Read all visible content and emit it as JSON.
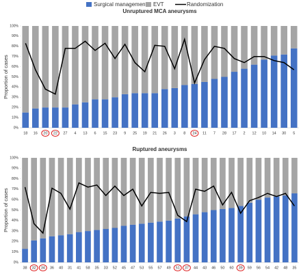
{
  "chart_data": [
    {
      "type": "stacked-bar-line",
      "title": "Unruptured MCA aneurysms",
      "y_label": "Proportion of cases",
      "categories": [
        "18",
        "16",
        "20",
        "22",
        "27",
        "4",
        "13",
        "6",
        "15",
        "23",
        "9",
        "25",
        "19",
        "21",
        "26",
        "3",
        "8",
        "24",
        "11",
        "7",
        "28",
        "17",
        "2",
        "12",
        "10",
        "14",
        "30",
        "5"
      ],
      "circled": [
        2,
        3,
        17
      ],
      "series": [
        {
          "name": "Surgical management",
          "color": "#4472c4",
          "kind": "bar",
          "values": [
            15,
            19,
            20,
            20,
            20,
            23,
            25,
            28,
            28,
            30,
            33,
            34,
            34,
            34,
            38,
            39,
            42,
            43,
            45,
            48,
            50,
            55,
            58,
            62,
            67,
            71,
            72,
            78
          ]
        },
        {
          "name": "EVT",
          "color": "#a5a5a5",
          "kind": "bar",
          "values": [
            85,
            81,
            80,
            80,
            80,
            77,
            75,
            72,
            72,
            70,
            67,
            66,
            66,
            66,
            62,
            61,
            58,
            57,
            55,
            52,
            50,
            45,
            42,
            38,
            33,
            29,
            28,
            22
          ]
        },
        {
          "name": "Randomization",
          "color": "#000000",
          "kind": "line",
          "values": [
            83,
            57,
            38,
            33,
            78,
            78,
            85,
            76,
            83,
            68,
            82,
            64,
            55,
            81,
            80,
            58,
            87,
            44,
            67,
            80,
            78,
            68,
            64,
            70,
            70,
            66,
            64,
            57
          ]
        }
      ],
      "ylim": [
        0,
        100
      ],
      "yticks": [
        {
          "value": 0,
          "label": "0%"
        },
        {
          "value": 10,
          "label": "10%"
        },
        {
          "value": 20,
          "label": "20%"
        },
        {
          "value": 30,
          "label": "30%"
        },
        {
          "value": 40,
          "label": "40%"
        },
        {
          "value": 50,
          "label": "50%"
        },
        {
          "value": 60,
          "label": "60%"
        },
        {
          "value": 70,
          "label": "70%"
        },
        {
          "value": 80,
          "label": "80%"
        },
        {
          "value": 90,
          "label": "90%"
        },
        {
          "value": 100,
          "label": "100%"
        }
      ]
    },
    {
      "type": "stacked-bar-line",
      "title": "Ruptured aneurysms",
      "y_label": "Proportion of cases",
      "categories": [
        "38",
        "32",
        "34",
        "36",
        "40",
        "31",
        "41",
        "58",
        "35",
        "33",
        "52",
        "45",
        "47",
        "53",
        "55",
        "57",
        "49",
        "51",
        "37",
        "44",
        "43",
        "46",
        "50",
        "60",
        "39",
        "59",
        "56",
        "54",
        "42",
        "48",
        "35"
      ],
      "circled": [
        1,
        2,
        17,
        18,
        24
      ],
      "series": [
        {
          "color": "#4472c4",
          "kind": "bar",
          "values": [
            13,
            21,
            23,
            25,
            26,
            27,
            29,
            30,
            31,
            32,
            33,
            35,
            36,
            37,
            38,
            39,
            40,
            42,
            44,
            46,
            48,
            50,
            51,
            52,
            54,
            57,
            60,
            62,
            63,
            64,
            66
          ]
        },
        {
          "color": "#a5a5a5",
          "kind": "bar",
          "values": [
            87,
            79,
            77,
            75,
            74,
            73,
            71,
            70,
            69,
            68,
            67,
            65,
            64,
            63,
            62,
            61,
            60,
            58,
            56,
            54,
            52,
            50,
            49,
            48,
            46,
            43,
            40,
            38,
            37,
            36,
            34
          ]
        },
        {
          "color": "#000000",
          "kind": "line",
          "values": [
            72,
            37,
            28,
            71,
            66,
            51,
            76,
            72,
            74,
            64,
            73,
            64,
            70,
            54,
            67,
            66,
            67,
            45,
            39,
            70,
            68,
            73,
            55,
            67,
            47,
            59,
            62,
            66,
            63,
            66,
            54
          ]
        }
      ],
      "ylim": [
        0,
        100
      ],
      "yticks": [
        {
          "value": 0,
          "label": "0%"
        },
        {
          "value": 10,
          "label": "10%"
        },
        {
          "value": 20,
          "label": "20%"
        },
        {
          "value": 30,
          "label": "30%"
        },
        {
          "value": 40,
          "label": "40%"
        },
        {
          "value": 50,
          "label": "50%"
        },
        {
          "value": 60,
          "label": "60%"
        },
        {
          "value": 70,
          "label": "70%"
        },
        {
          "value": 80,
          "label": "80%"
        },
        {
          "value": 90,
          "label": "90%"
        },
        {
          "value": 100,
          "label": "100%"
        }
      ]
    }
  ]
}
